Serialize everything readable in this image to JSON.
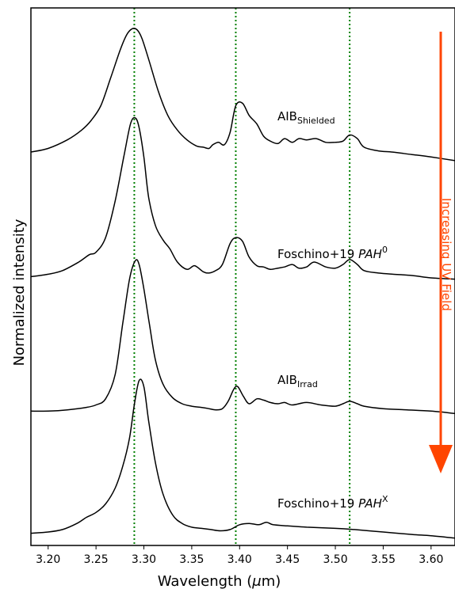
{
  "chart_data": {
    "type": "line",
    "xlabel": "Wavelength (μm)",
    "xlabel_parts": {
      "text": "Wavelength (",
      "mu": "μ",
      "tail": "m)"
    },
    "ylabel": "Normalized intensity",
    "xlim": [
      3.182,
      3.625
    ],
    "ylim": [
      0,
      4.4
    ],
    "x_ticks": [
      3.2,
      3.25,
      3.3,
      3.35,
      3.4,
      3.45,
      3.5,
      3.55,
      3.6
    ],
    "x_tick_labels": [
      "3.20",
      "3.25",
      "3.30",
      "3.35",
      "3.40",
      "3.45",
      "3.50",
      "3.55",
      "3.60"
    ],
    "y_ticks_shown": false,
    "vertical_lines": {
      "x": [
        3.29,
        3.396,
        3.515
      ],
      "color": "#008000",
      "style": "dotted"
    },
    "arrow": {
      "label": "Increasing UV Field",
      "color": "#ff4500",
      "direction": "down"
    },
    "series": [
      {
        "label_base": "AIB",
        "label_sub": "Shielded",
        "label_sup": "",
        "offset": 3.2,
        "x": [
          3.182,
          3.2,
          3.22,
          3.235,
          3.245,
          3.255,
          3.265,
          3.275,
          3.282,
          3.288,
          3.293,
          3.298,
          3.305,
          3.315,
          3.325,
          3.335,
          3.345,
          3.355,
          3.362,
          3.368,
          3.372,
          3.378,
          3.384,
          3.39,
          3.396,
          3.403,
          3.41,
          3.418,
          3.425,
          3.432,
          3.44,
          3.447,
          3.455,
          3.462,
          3.47,
          3.48,
          3.49,
          3.5,
          3.508,
          3.515,
          3.523,
          3.53,
          3.545,
          3.56,
          3.58,
          3.6,
          3.625
        ],
        "y": [
          0.02,
          0.05,
          0.12,
          0.2,
          0.28,
          0.4,
          0.62,
          0.85,
          0.98,
          1.03,
          1.02,
          0.95,
          0.78,
          0.52,
          0.32,
          0.2,
          0.12,
          0.07,
          0.06,
          0.05,
          0.08,
          0.1,
          0.08,
          0.18,
          0.4,
          0.42,
          0.32,
          0.25,
          0.15,
          0.11,
          0.09,
          0.13,
          0.1,
          0.13,
          0.12,
          0.13,
          0.1,
          0.1,
          0.11,
          0.16,
          0.13,
          0.06,
          0.03,
          0.02,
          0.0,
          -0.02,
          -0.05
        ]
      },
      {
        "label_base": "Foschino+19 ",
        "label_sub": "",
        "label_sup": "0",
        "label_italic": "PAH",
        "offset": 2.2,
        "x": [
          3.182,
          3.2,
          3.215,
          3.232,
          3.243,
          3.25,
          3.26,
          3.27,
          3.279,
          3.286,
          3.291,
          3.295,
          3.3,
          3.305,
          3.312,
          3.32,
          3.327,
          3.335,
          3.345,
          3.353,
          3.362,
          3.368,
          3.375,
          3.382,
          3.39,
          3.396,
          3.403,
          3.41,
          3.418,
          3.425,
          3.432,
          3.44,
          3.447,
          3.455,
          3.462,
          3.47,
          3.478,
          3.49,
          3.5,
          3.508,
          3.515,
          3.523,
          3.53,
          3.545,
          3.56,
          3.58,
          3.6,
          3.625
        ],
        "y": [
          0.0,
          0.02,
          0.05,
          0.12,
          0.18,
          0.2,
          0.32,
          0.62,
          0.98,
          1.25,
          1.3,
          1.22,
          0.98,
          0.65,
          0.42,
          0.3,
          0.23,
          0.12,
          0.06,
          0.09,
          0.04,
          0.03,
          0.05,
          0.1,
          0.27,
          0.32,
          0.29,
          0.16,
          0.09,
          0.08,
          0.06,
          0.07,
          0.08,
          0.1,
          0.07,
          0.08,
          0.12,
          0.08,
          0.07,
          0.1,
          0.14,
          0.1,
          0.05,
          0.03,
          0.02,
          0.01,
          -0.01,
          -0.02
        ]
      },
      {
        "label_base": "AIB",
        "label_sub": "Irrad",
        "label_sup": "",
        "offset": 1.1,
        "x": [
          3.182,
          3.2,
          3.22,
          3.24,
          3.25,
          3.26,
          3.27,
          3.278,
          3.285,
          3.291,
          3.295,
          3.3,
          3.306,
          3.312,
          3.32,
          3.33,
          3.34,
          3.35,
          3.36,
          3.368,
          3.375,
          3.382,
          3.388,
          3.394,
          3.398,
          3.404,
          3.41,
          3.418,
          3.425,
          3.432,
          3.44,
          3.447,
          3.455,
          3.47,
          3.485,
          3.5,
          3.508,
          3.515,
          3.523,
          3.53,
          3.55,
          3.575,
          3.6,
          3.625
        ],
        "y": [
          0.0,
          0.0,
          0.01,
          0.03,
          0.05,
          0.1,
          0.3,
          0.72,
          1.08,
          1.23,
          1.2,
          1.0,
          0.7,
          0.42,
          0.22,
          0.11,
          0.06,
          0.04,
          0.03,
          0.02,
          0.01,
          0.02,
          0.08,
          0.18,
          0.2,
          0.12,
          0.06,
          0.1,
          0.09,
          0.07,
          0.06,
          0.07,
          0.05,
          0.07,
          0.05,
          0.04,
          0.06,
          0.08,
          0.06,
          0.04,
          0.02,
          0.01,
          0.0,
          -0.02
        ]
      },
      {
        "label_base": "Foschino+19 ",
        "label_sub": "",
        "label_sup": "X",
        "label_italic": "PAH",
        "offset": 0.1,
        "x": [
          3.182,
          3.2,
          3.215,
          3.23,
          3.24,
          3.25,
          3.26,
          3.27,
          3.278,
          3.285,
          3.29,
          3.295,
          3.3,
          3.305,
          3.312,
          3.32,
          3.33,
          3.34,
          3.35,
          3.36,
          3.37,
          3.38,
          3.39,
          3.4,
          3.41,
          3.42,
          3.428,
          3.435,
          3.45,
          3.47,
          3.5,
          3.52,
          3.55,
          3.58,
          3.6,
          3.625
        ],
        "y": [
          0.0,
          0.01,
          0.03,
          0.08,
          0.13,
          0.17,
          0.24,
          0.37,
          0.55,
          0.78,
          1.05,
          1.25,
          1.2,
          0.92,
          0.58,
          0.32,
          0.15,
          0.08,
          0.05,
          0.04,
          0.03,
          0.02,
          0.03,
          0.07,
          0.08,
          0.07,
          0.09,
          0.07,
          0.06,
          0.05,
          0.04,
          0.03,
          0.01,
          -0.01,
          -0.02,
          -0.04
        ]
      }
    ]
  }
}
